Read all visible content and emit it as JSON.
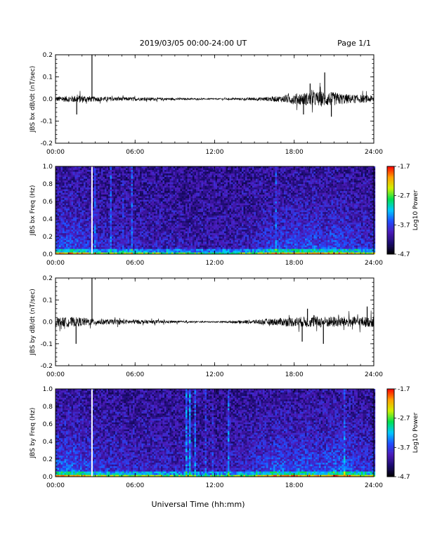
{
  "header": {
    "title": "2019/03/05  00:00-24:00 UT",
    "page": "Page 1/1"
  },
  "footer": {
    "xlabel": "Universal Time (hh:mm)"
  },
  "colors": {
    "trace": "#000000",
    "colorbar_stops": [
      "#000000",
      "#1a0b6e",
      "#4b1ab8",
      "#1f4dff",
      "#00c8ff",
      "#00e050",
      "#d0f000",
      "#ffa000",
      "#ff0000"
    ],
    "gap_line": "#ffffff"
  },
  "chart_data": [
    {
      "type": "line",
      "name": "bx-waveform",
      "ylabel": "JBS bx dB/dt (nT/sec)",
      "xlim": [
        0,
        24
      ],
      "ylim": [
        -0.2,
        0.2
      ],
      "x_ticks": [
        "00:00",
        "06:00",
        "12:00",
        "18:00",
        "24:00"
      ],
      "y_ticks": [
        "0.2",
        "0.1",
        "0.0",
        "-0.1",
        "-0.2"
      ],
      "envelope": {
        "x": [
          0,
          1,
          2,
          2.8,
          4,
          6,
          8,
          10,
          11,
          12,
          13,
          14,
          15,
          16,
          17,
          18,
          19,
          20,
          21,
          22,
          23,
          24
        ],
        "amp": [
          0.012,
          0.014,
          0.018,
          0.012,
          0.01,
          0.008,
          0.006,
          0.004,
          0.003,
          0.003,
          0.004,
          0.005,
          0.007,
          0.01,
          0.014,
          0.025,
          0.03,
          0.035,
          0.03,
          0.022,
          0.018,
          0.016
        ]
      },
      "spikes": [
        {
          "x": 1.6,
          "y": -0.07
        },
        {
          "x": 2.75,
          "y": 0.2
        },
        {
          "x": 18.7,
          "y": -0.07
        },
        {
          "x": 20.3,
          "y": 0.12
        },
        {
          "x": 19.2,
          "y": 0.07
        },
        {
          "x": 20.8,
          "y": -0.08
        }
      ]
    },
    {
      "type": "heatmap",
      "name": "bx-spectrogram",
      "ylabel": "JBS bx Freq (Hz)",
      "xlim": [
        0,
        24
      ],
      "ylim": [
        0,
        1.0
      ],
      "x_ticks": [
        "00:00",
        "06:00",
        "12:00",
        "18:00",
        "24:00"
      ],
      "y_ticks": [
        "1.0",
        "0.8",
        "0.6",
        "0.4",
        "0.2",
        "0.0"
      ],
      "colorbar": {
        "label": "Log10 Power",
        "ticks": [
          "-1.7",
          "-2.7",
          "-3.7",
          "-4.7"
        ],
        "range": [
          -4.7,
          -1.7
        ]
      },
      "data_gap_x": 2.75,
      "activity": {
        "x": [
          0,
          1,
          2,
          3,
          4,
          6,
          8,
          10,
          12,
          14,
          15,
          16,
          17,
          18,
          19,
          20,
          21,
          22,
          23,
          24
        ],
        "level": [
          0.55,
          0.6,
          0.5,
          0.35,
          0.3,
          0.28,
          0.22,
          0.18,
          0.15,
          0.2,
          0.3,
          0.45,
          0.5,
          0.55,
          0.6,
          0.5,
          0.6,
          0.55,
          0.4,
          0.35
        ]
      }
    },
    {
      "type": "line",
      "name": "by-waveform",
      "ylabel": "JBS by dB/dt (nT/sec)",
      "xlim": [
        0,
        24
      ],
      "ylim": [
        -0.2,
        0.2
      ],
      "x_ticks": [
        "00:00",
        "06:00",
        "12:00",
        "18:00",
        "24:00"
      ],
      "y_ticks": [
        "0.2",
        "0.1",
        "0.0",
        "-0.1",
        "-0.2"
      ],
      "envelope": {
        "x": [
          0,
          1,
          2,
          2.8,
          4,
          6,
          8,
          10,
          11,
          12,
          13,
          14,
          15,
          16,
          17,
          18,
          19,
          20,
          21,
          22,
          23,
          24
        ],
        "amp": [
          0.02,
          0.022,
          0.02,
          0.015,
          0.012,
          0.01,
          0.007,
          0.004,
          0.003,
          0.003,
          0.005,
          0.007,
          0.01,
          0.014,
          0.018,
          0.022,
          0.025,
          0.025,
          0.025,
          0.024,
          0.024,
          0.024
        ]
      },
      "spikes": [
        {
          "x": 1.55,
          "y": -0.1
        },
        {
          "x": 2.75,
          "y": 0.2
        },
        {
          "x": 18.6,
          "y": -0.09
        },
        {
          "x": 20.2,
          "y": -0.1
        },
        {
          "x": 19.0,
          "y": 0.06
        },
        {
          "x": 23.5,
          "y": 0.07
        }
      ]
    },
    {
      "type": "heatmap",
      "name": "by-spectrogram",
      "ylabel": "JBS by Freq (Hz)",
      "xlim": [
        0,
        24
      ],
      "ylim": [
        0,
        1.0
      ],
      "x_ticks": [
        "00:00",
        "06:00",
        "12:00",
        "18:00",
        "24:00"
      ],
      "y_ticks": [
        "1.0",
        "0.8",
        "0.6",
        "0.4",
        "0.2",
        "0.0"
      ],
      "colorbar": {
        "label": "Log10 Power",
        "ticks": [
          "-1.7",
          "-2.7",
          "-3.7",
          "-4.7"
        ],
        "range": [
          -4.7,
          -1.7
        ]
      },
      "data_gap_x": 2.75,
      "activity": {
        "x": [
          0,
          1,
          2,
          3,
          4,
          6,
          8,
          10,
          12,
          14,
          15,
          16,
          17,
          18,
          19,
          20,
          21,
          22,
          23,
          24
        ],
        "level": [
          0.65,
          0.7,
          0.55,
          0.45,
          0.4,
          0.35,
          0.3,
          0.2,
          0.18,
          0.3,
          0.45,
          0.55,
          0.65,
          0.6,
          0.65,
          0.55,
          0.7,
          0.65,
          0.5,
          0.45
        ]
      }
    }
  ]
}
